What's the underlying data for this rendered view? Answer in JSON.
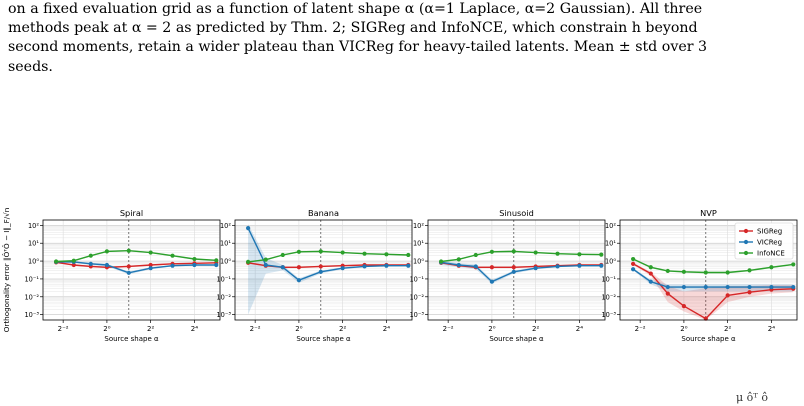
{
  "caption": {
    "lines": [
      "on a fixed evaluation grid as a function of latent shape α (α=1 Laplace, α=2 Gaussian). All three",
      "methods peak at α = 2 as predicted by Thm. 2; SIGReg and InfoNCE, which constrain h beyond",
      "second moments, retain a wider plateau than VICReg for heavy-tailed latents. Mean ± std over 3",
      "seeds."
    ]
  },
  "footer_math": "μ ôᵀ ô",
  "chart_data": {
    "type": "line",
    "ylabel": "Orthogonality error  ‖ÔᵀÔ − I‖_F/√n",
    "xlabel": "Source shape α",
    "xscale": "log2",
    "yscale": "log10",
    "xticks": [
      "2⁻²",
      "2⁰",
      "2²",
      "2⁴"
    ],
    "xtick_values": [
      0.25,
      1,
      4,
      16
    ],
    "yticks": [
      "10²",
      "10¹",
      "10⁰",
      "10⁻¹",
      "10⁻²",
      "10⁻³"
    ],
    "ytick_values": [
      100,
      10,
      1,
      0.1,
      0.01,
      0.001
    ],
    "ylim": [
      0.0005,
      200
    ],
    "xlim": [
      0.132,
      36
    ],
    "reference_line_x": 2,
    "grid": true,
    "legend_placement": "top-right (NVP panel)",
    "alpha": [
      0.2,
      0.3,
      0.5,
      0.75,
      1,
      1.5,
      2,
      3,
      4,
      6,
      8,
      12,
      16,
      24
    ],
    "series_styles": [
      {
        "name": "SIGReg",
        "color": "#d62728"
      },
      {
        "name": "VICReg",
        "color": "#1f77b4"
      },
      {
        "name": "InfoNCE",
        "color": "#2ca02c"
      }
    ],
    "panels": [
      {
        "title": "Spiral",
        "series": [
          {
            "name": "SIGReg",
            "x": [
              0.2,
              0.35,
              0.6,
              1,
              2,
              4,
              8,
              16,
              32
            ],
            "values": [
              0.85,
              0.6,
              0.5,
              0.45,
              0.5,
              0.6,
              0.7,
              0.75,
              0.8
            ],
            "band_low": [
              0.8,
              0.55,
              0.45,
              0.4,
              0.45,
              0.55,
              0.65,
              0.7,
              0.75
            ],
            "band_high": [
              0.9,
              0.65,
              0.55,
              0.5,
              0.55,
              0.65,
              0.75,
              0.8,
              0.85
            ]
          },
          {
            "name": "VICReg",
            "x": [
              0.2,
              0.35,
              0.6,
              1,
              2,
              4,
              8,
              16,
              32
            ],
            "values": [
              0.9,
              0.9,
              0.7,
              0.6,
              0.22,
              0.4,
              0.55,
              0.6,
              0.6
            ],
            "band_low": [
              0.8,
              0.8,
              0.6,
              0.5,
              0.18,
              0.35,
              0.5,
              0.55,
              0.55
            ],
            "band_high": [
              1.0,
              1.0,
              0.8,
              0.7,
              0.26,
              0.45,
              0.6,
              0.65,
              0.65
            ]
          },
          {
            "name": "InfoNCE",
            "x": [
              0.2,
              0.35,
              0.6,
              1,
              2,
              4,
              8,
              16,
              32
            ],
            "values": [
              0.95,
              1.05,
              2.0,
              3.5,
              3.8,
              3.0,
              2.0,
              1.3,
              1.1
            ],
            "band_low": [
              0.9,
              1.0,
              1.8,
              3.2,
              3.5,
              2.8,
              1.8,
              1.2,
              1.0
            ],
            "band_high": [
              1.0,
              1.1,
              2.2,
              3.8,
              4.1,
              3.2,
              2.2,
              1.4,
              1.2
            ]
          }
        ]
      },
      {
        "title": "Banana",
        "series": [
          {
            "name": "SIGReg",
            "x": [
              0.2,
              0.35,
              0.6,
              1,
              2,
              4,
              8,
              16,
              32
            ],
            "values": [
              0.8,
              0.55,
              0.45,
              0.45,
              0.5,
              0.55,
              0.6,
              0.6,
              0.6
            ],
            "band_low": [
              0.7,
              0.5,
              0.4,
              0.4,
              0.45,
              0.5,
              0.55,
              0.55,
              0.55
            ],
            "band_high": [
              0.9,
              0.6,
              0.5,
              0.5,
              0.55,
              0.6,
              0.65,
              0.65,
              0.65
            ]
          },
          {
            "name": "VICReg",
            "x": [
              0.2,
              0.35,
              0.6,
              1,
              2,
              4,
              8,
              16,
              32
            ],
            "values": [
              70,
              0.6,
              0.45,
              0.085,
              0.25,
              0.4,
              0.5,
              0.55,
              0.55
            ],
            "band_low": [
              0.001,
              0.2,
              0.3,
              0.06,
              0.2,
              0.35,
              0.45,
              0.5,
              0.5
            ],
            "band_high": [
              120,
              1.5,
              0.6,
              0.11,
              0.3,
              0.45,
              0.55,
              0.6,
              0.6
            ]
          },
          {
            "name": "InfoNCE",
            "x": [
              0.2,
              0.35,
              0.6,
              1,
              2,
              4,
              8,
              16,
              32
            ],
            "values": [
              0.9,
              1.2,
              2.2,
              3.3,
              3.5,
              3.0,
              2.6,
              2.4,
              2.2
            ],
            "band_low": [
              0.8,
              1.1,
              2.0,
              3.0,
              3.2,
              2.8,
              2.4,
              2.2,
              2.0
            ],
            "band_high": [
              1.0,
              1.3,
              2.4,
              3.6,
              3.8,
              3.2,
              2.8,
              2.6,
              2.4
            ]
          }
        ]
      },
      {
        "title": "Sinusoid",
        "series": [
          {
            "name": "SIGReg",
            "x": [
              0.2,
              0.35,
              0.6,
              1,
              2,
              4,
              8,
              16,
              32
            ],
            "values": [
              0.8,
              0.55,
              0.45,
              0.45,
              0.45,
              0.5,
              0.55,
              0.6,
              0.6
            ],
            "band_low": [
              0.7,
              0.5,
              0.4,
              0.4,
              0.4,
              0.45,
              0.5,
              0.55,
              0.55
            ],
            "band_high": [
              0.9,
              0.6,
              0.5,
              0.5,
              0.5,
              0.55,
              0.6,
              0.65,
              0.65
            ]
          },
          {
            "name": "VICReg",
            "x": [
              0.2,
              0.35,
              0.6,
              1,
              2,
              4,
              8,
              16,
              32
            ],
            "values": [
              0.85,
              0.6,
              0.5,
              0.07,
              0.25,
              0.4,
              0.5,
              0.55,
              0.55
            ],
            "band_low": [
              0.6,
              0.45,
              0.35,
              0.055,
              0.2,
              0.35,
              0.45,
              0.5,
              0.5
            ],
            "band_high": [
              1.1,
              0.75,
              0.65,
              0.09,
              0.3,
              0.45,
              0.55,
              0.6,
              0.6
            ]
          },
          {
            "name": "InfoNCE",
            "x": [
              0.2,
              0.35,
              0.6,
              1,
              2,
              4,
              8,
              16,
              32
            ],
            "values": [
              0.95,
              1.25,
              2.2,
              3.3,
              3.5,
              3.0,
              2.6,
              2.4,
              2.3
            ],
            "band_low": [
              0.9,
              1.15,
              2.0,
              3.0,
              3.2,
              2.8,
              2.4,
              2.2,
              2.1
            ],
            "band_high": [
              1.0,
              1.35,
              2.4,
              3.6,
              3.8,
              3.2,
              2.8,
              2.6,
              2.5
            ]
          }
        ]
      },
      {
        "title": "NVP",
        "series": [
          {
            "name": "SIGReg",
            "x": [
              0.2,
              0.35,
              0.6,
              1,
              2,
              4,
              8,
              16,
              32
            ],
            "values": [
              0.7,
              0.2,
              0.015,
              0.003,
              0.0006,
              0.012,
              0.018,
              0.025,
              0.028
            ],
            "band_low": [
              0.6,
              0.15,
              0.005,
              0.0015,
              0.0005,
              0.005,
              0.01,
              0.015,
              0.018
            ],
            "band_high": [
              0.8,
              0.25,
              0.04,
              0.02,
              0.03,
              0.04,
              0.04,
              0.045,
              0.045
            ]
          },
          {
            "name": "VICReg",
            "x": [
              0.2,
              0.35,
              0.6,
              1,
              2,
              4,
              8,
              16,
              32
            ],
            "values": [
              0.35,
              0.07,
              0.035,
              0.035,
              0.035,
              0.035,
              0.035,
              0.035,
              0.035
            ],
            "band_low": [
              0.3,
              0.05,
              0.02,
              0.02,
              0.02,
              0.02,
              0.02,
              0.02,
              0.02
            ],
            "band_high": [
              0.4,
              0.09,
              0.05,
              0.05,
              0.05,
              0.05,
              0.05,
              0.05,
              0.05
            ]
          },
          {
            "name": "InfoNCE",
            "x": [
              0.2,
              0.35,
              0.6,
              1,
              2,
              4,
              8,
              16,
              32
            ],
            "values": [
              1.3,
              0.45,
              0.28,
              0.25,
              0.23,
              0.23,
              0.3,
              0.45,
              0.65
            ],
            "band_low": [
              1.2,
              0.4,
              0.25,
              0.22,
              0.2,
              0.2,
              0.27,
              0.4,
              0.6
            ],
            "band_high": [
              1.4,
              0.5,
              0.31,
              0.28,
              0.26,
              0.26,
              0.33,
              0.5,
              0.7
            ]
          }
        ]
      }
    ]
  }
}
